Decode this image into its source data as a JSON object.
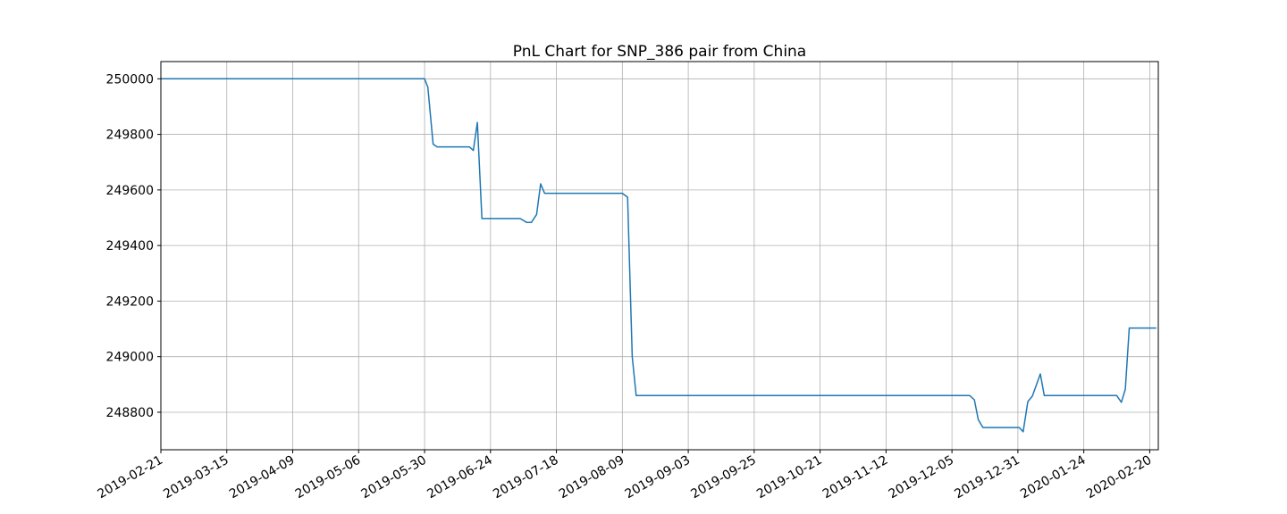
{
  "chart_data": {
    "type": "line",
    "title": "PnL Chart for SNP_386 pair from China",
    "xlabel": "",
    "ylabel": "",
    "grid": true,
    "x_tick_labels": [
      "2019-02-21",
      "2019-03-15",
      "2019-04-09",
      "2019-05-06",
      "2019-05-30",
      "2019-06-24",
      "2019-07-18",
      "2019-08-09",
      "2019-09-03",
      "2019-09-25",
      "2019-10-21",
      "2019-11-12",
      "2019-12-05",
      "2019-12-31",
      "2020-01-24",
      "2020-02-20"
    ],
    "y_ticks": [
      248800,
      249000,
      249200,
      249400,
      249600,
      249800,
      250000
    ],
    "y_tick_labels": [
      "248800",
      "249000",
      "249200",
      "249400",
      "249600",
      "249800",
      "250000"
    ],
    "xlim_tick_index": [
      0,
      15.13
    ],
    "ylim": [
      248665,
      250062
    ],
    "series": [
      {
        "color": "#1f77b4",
        "points": [
          [
            0,
            250000
          ],
          [
            4.0,
            250000
          ],
          [
            4.05,
            249970
          ],
          [
            4.13,
            249765
          ],
          [
            4.19,
            249755
          ],
          [
            4.68,
            249755
          ],
          [
            4.74,
            249742
          ],
          [
            4.8,
            249843
          ],
          [
            4.87,
            249497
          ],
          [
            5.45,
            249497
          ],
          [
            5.55,
            249483
          ],
          [
            5.62,
            249483
          ],
          [
            5.7,
            249512
          ],
          [
            5.76,
            249622
          ],
          [
            5.82,
            249588
          ],
          [
            7.0,
            249588
          ],
          [
            7.08,
            249574
          ],
          [
            7.15,
            249000
          ],
          [
            7.21,
            248860
          ],
          [
            12.27,
            248860
          ],
          [
            12.34,
            248845
          ],
          [
            12.4,
            248773
          ],
          [
            12.47,
            248745
          ],
          [
            13.02,
            248745
          ],
          [
            13.08,
            248730
          ],
          [
            13.15,
            248838
          ],
          [
            13.22,
            248858
          ],
          [
            13.34,
            248938
          ],
          [
            13.4,
            248860
          ],
          [
            14.5,
            248860
          ],
          [
            14.57,
            248836
          ],
          [
            14.63,
            248883
          ],
          [
            14.69,
            249103
          ],
          [
            15.1,
            249103
          ]
        ]
      }
    ]
  }
}
